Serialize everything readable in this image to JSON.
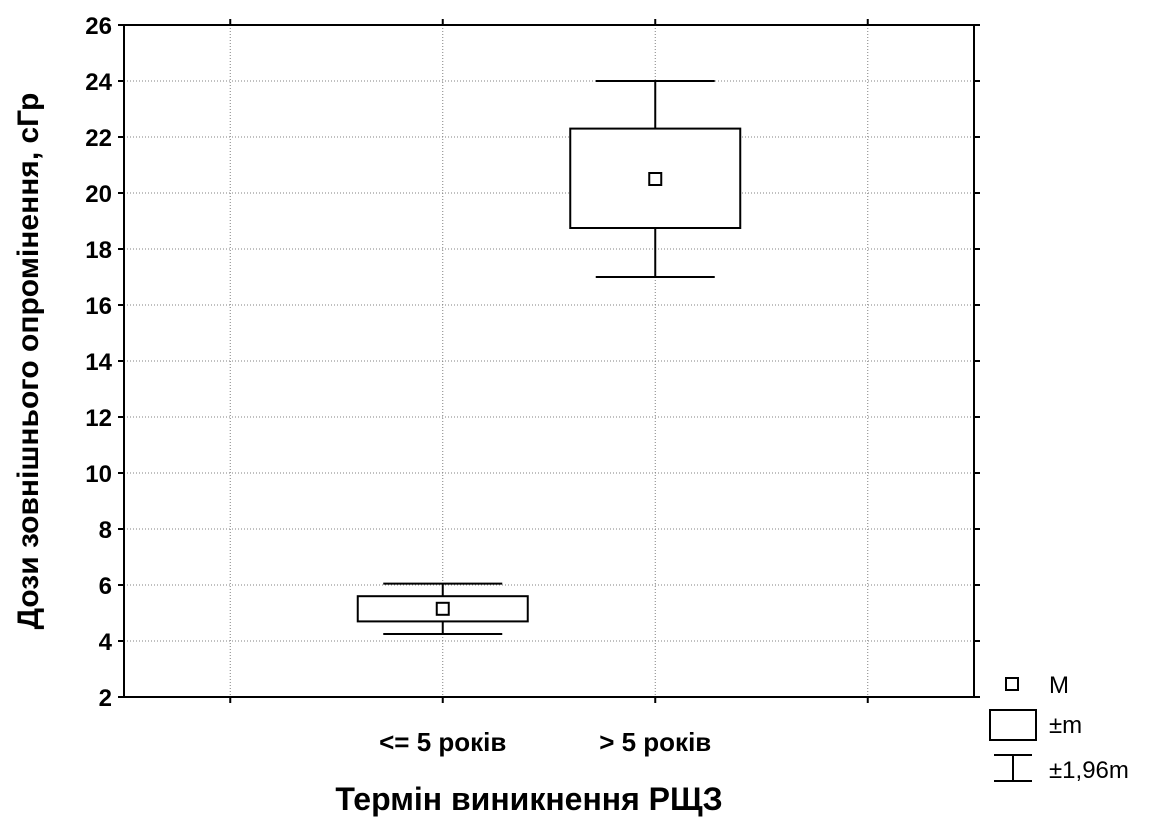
{
  "chart_data": {
    "type": "box",
    "xlabel": "Термін виникнення РЩЗ",
    "ylabel": "Дози зовнішнього опромінення, сГр",
    "ylim": [
      2,
      26
    ],
    "yticks": [
      "2",
      "4",
      "6",
      "8",
      "10",
      "12",
      "14",
      "16",
      "18",
      "20",
      "22",
      "24",
      "26"
    ],
    "grid": true,
    "categories": [
      "<= 5 років",
      "> 5 років"
    ],
    "groups": [
      {
        "category": "<= 5 років",
        "mean": 5.15,
        "m_low": 4.7,
        "m_high": 5.6,
        "ci_low": 4.25,
        "ci_high": 6.05
      },
      {
        "category": "> 5 років",
        "mean": 20.5,
        "m_low": 18.75,
        "m_high": 22.3,
        "ci_low": 17.0,
        "ci_high": 24.0
      }
    ],
    "legend": {
      "position": "bottom-right",
      "items": [
        {
          "key": "mean",
          "label": "M"
        },
        {
          "key": "box",
          "label": "±m"
        },
        {
          "key": "whisker",
          "label": "±1,96m"
        }
      ]
    },
    "colors": {
      "line": "#000000",
      "grid": "#808080",
      "background": "#ffffff"
    }
  }
}
